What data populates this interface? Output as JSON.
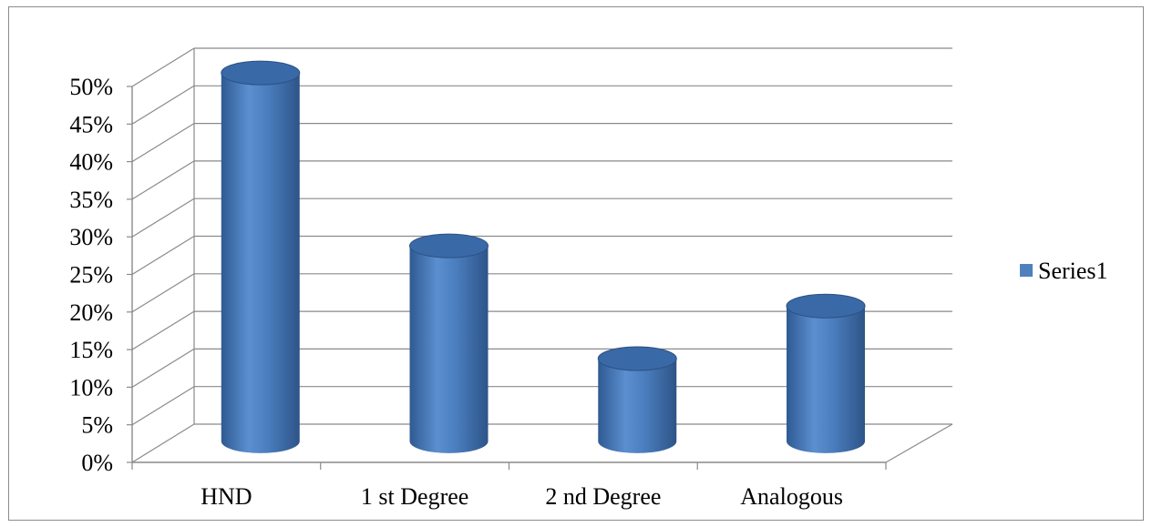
{
  "chart_data": {
    "type": "bar",
    "style": "3d-cylinder",
    "categories": [
      "HND",
      "1 st Degree",
      "2 nd Degree",
      "Analogous"
    ],
    "series": [
      {
        "name": "Series1",
        "values": [
          0.49,
          0.26,
          0.11,
          0.18
        ],
        "color": "#4F81BD"
      }
    ],
    "ylim": [
      0,
      0.5
    ],
    "y_ticks": [
      "0%",
      "5%",
      "10%",
      "15%",
      "20%",
      "25%",
      "30%",
      "35%",
      "40%",
      "45%",
      "50%"
    ],
    "grid": true,
    "legend_position": "right"
  }
}
